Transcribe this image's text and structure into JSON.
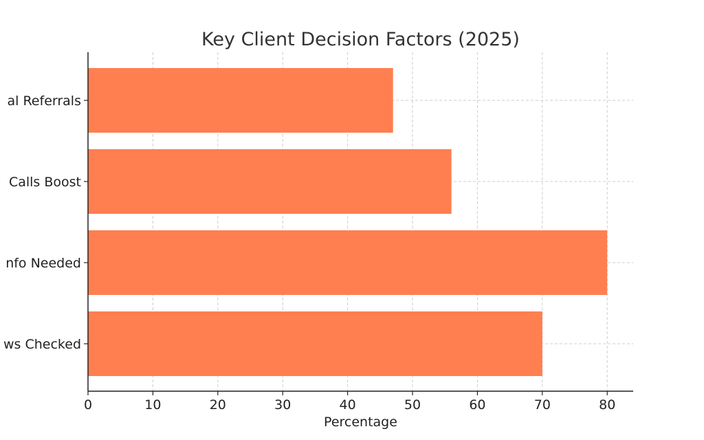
{
  "chart_data": {
    "type": "bar",
    "orientation": "horizontal",
    "title": "Key Client Decision Factors (2025)",
    "xlabel": "Percentage",
    "ylabel": "",
    "categories": [
      "al Referrals",
      "Calls Boost",
      "nfo Needed",
      "ws Checked"
    ],
    "values": [
      47,
      56,
      80,
      70
    ],
    "xlim": [
      0,
      84
    ],
    "xticks": [
      0,
      10,
      20,
      30,
      40,
      50,
      60,
      70,
      80
    ],
    "grid": true,
    "legend": "none",
    "bar_color": "#ff7f50"
  }
}
